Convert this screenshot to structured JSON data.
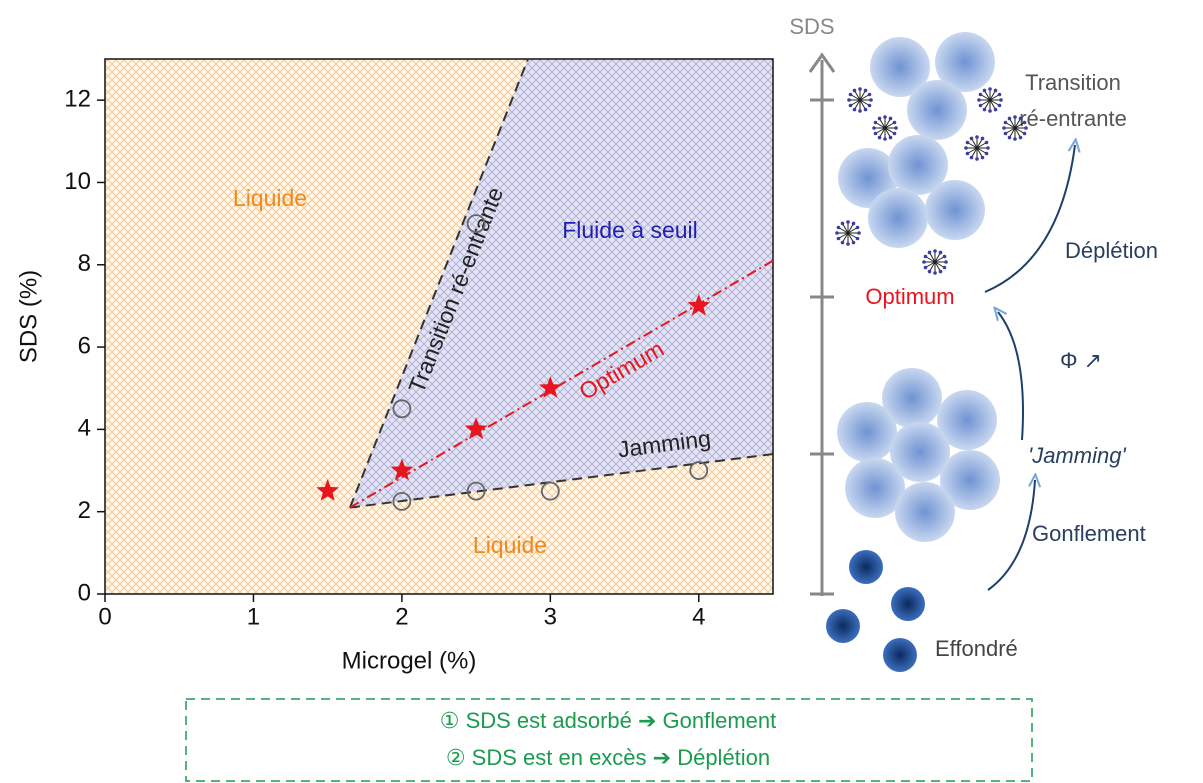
{
  "chart_data": {
    "type": "scatter",
    "xlabel": "Microgel (%)",
    "ylabel": "SDS (%)",
    "xlim": [
      0,
      4.5
    ],
    "ylim": [
      0,
      13
    ],
    "xticks": [
      0,
      1,
      2,
      3,
      4
    ],
    "yticks": [
      0,
      2,
      4,
      6,
      8,
      10,
      12
    ],
    "regions": [
      "Liquide",
      "Fluide à seuil",
      "Liquide"
    ],
    "series": [
      {
        "name": "Transition ré-entrante",
        "color": "#333333",
        "dash": "dashed",
        "x": [
          1.65,
          2.85
        ],
        "y": [
          2.1,
          13
        ]
      },
      {
        "name": "Jamming",
        "color": "#333333",
        "dash": "dashed",
        "x": [
          1.65,
          4.5
        ],
        "y": [
          2.1,
          3.4
        ]
      },
      {
        "name": "Optimum",
        "color": "#e8141e",
        "dash": "dashdot",
        "x": [
          1.65,
          4.5
        ],
        "y": [
          2.1,
          8.1
        ]
      },
      {
        "marker": "star",
        "color": "#e8141e",
        "x": [
          1.5,
          2,
          2.5,
          3,
          4
        ],
        "y": [
          2.5,
          3,
          4,
          5,
          7
        ]
      },
      {
        "marker": "circle",
        "color": "#666666",
        "x": [
          2,
          2,
          2.5,
          2.5,
          3,
          4
        ],
        "y": [
          2.25,
          4.5,
          9,
          2.5,
          2.5,
          3
        ]
      }
    ]
  },
  "diagram": {
    "axis_label": "SDS",
    "transition": [
      "Transition",
      "ré-entrante"
    ],
    "depletion": "Déplétion",
    "optimum": "Optimum",
    "phi": "Φ ↗",
    "jamming": "'Jamming'",
    "swelling": "Gonflement",
    "collapsed": "Effondré"
  },
  "notes": [
    "① SDS est adsorbé ➔ Gonflement",
    "② SDS est en excès ➔ Déplétion"
  ]
}
